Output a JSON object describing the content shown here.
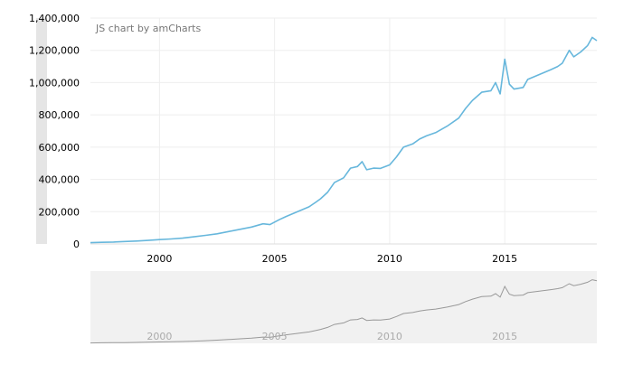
{
  "credit": "JS chart by amCharts",
  "colors": {
    "line": "#67b7dc",
    "grid": "#eeeeee",
    "text": "#000000",
    "credit": "#777777",
    "scroll_bg": "#f1f1f1",
    "scroll_line": "#999999",
    "scroll_label": "#aaaaaa",
    "handle": "#e5e5e5"
  },
  "chart_data": {
    "type": "line",
    "title": "",
    "xlabel": "",
    "ylabel": "",
    "xlim": [
      1997.0,
      2019.0
    ],
    "ylim": [
      0,
      1400000
    ],
    "y_ticks": [
      0,
      200000,
      400000,
      600000,
      800000,
      1000000,
      1200000,
      1400000
    ],
    "y_tick_labels": [
      "0",
      "200,000",
      "400,000",
      "600,000",
      "800,000",
      "1,000,000",
      "1,200,000",
      "1,400,000"
    ],
    "x_ticks": [
      2000,
      2005,
      2010,
      2015
    ],
    "x_tick_labels": [
      "2000",
      "2005",
      "2010",
      "2015"
    ],
    "grid": true,
    "series": [
      {
        "x": [
          1997.0,
          1997.5,
          1998.0,
          1998.5,
          1999.0,
          1999.5,
          2000.0,
          2000.5,
          2001.0,
          2001.5,
          2002.0,
          2002.5,
          2003.0,
          2003.5,
          2004.0,
          2004.5,
          2004.8,
          2005.2,
          2005.5,
          2006.0,
          2006.5,
          2006.8,
          2007.0,
          2007.3,
          2007.6,
          2008.0,
          2008.3,
          2008.6,
          2008.8,
          2009.0,
          2009.3,
          2009.6,
          2010.0,
          2010.3,
          2010.6,
          2011.0,
          2011.3,
          2011.6,
          2012.0,
          2012.5,
          2013.0,
          2013.3,
          2013.6,
          2014.0,
          2014.4,
          2014.6,
          2014.8,
          2015.0,
          2015.2,
          2015.4,
          2015.8,
          2016.0,
          2016.5,
          2017.0,
          2017.3,
          2017.5,
          2017.8,
          2018.0,
          2018.3,
          2018.6,
          2018.8,
          2019.0
        ],
        "values": [
          8000,
          10000,
          12000,
          15000,
          18000,
          22000,
          27000,
          31000,
          36000,
          44000,
          53000,
          63000,
          77000,
          91000,
          105000,
          125000,
          120000,
          150000,
          170000,
          200000,
          230000,
          260000,
          280000,
          320000,
          380000,
          410000,
          470000,
          480000,
          510000,
          460000,
          470000,
          468000,
          490000,
          540000,
          600000,
          620000,
          650000,
          670000,
          690000,
          730000,
          780000,
          840000,
          890000,
          940000,
          950000,
          1000000,
          930000,
          1145000,
          990000,
          960000,
          970000,
          1020000,
          1050000,
          1080000,
          1100000,
          1120000,
          1200000,
          1160000,
          1190000,
          1230000,
          1280000,
          1260000
        ]
      }
    ]
  }
}
